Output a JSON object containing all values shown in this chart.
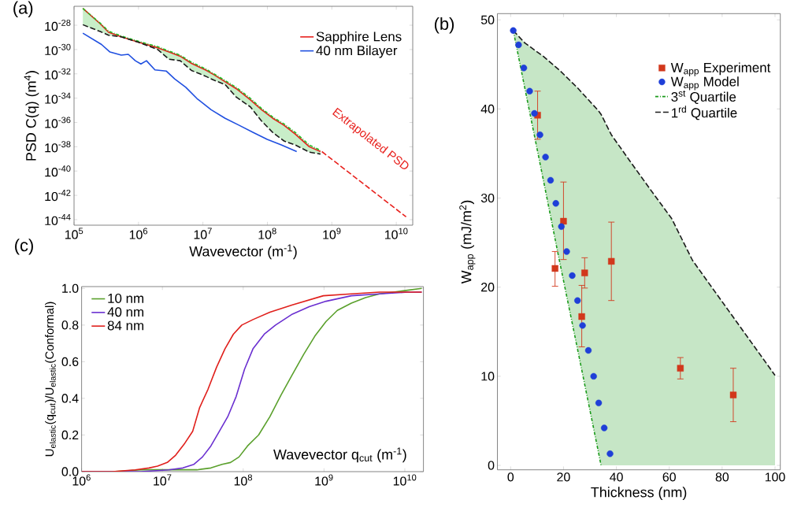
{
  "chart_data": [
    {
      "type": "line",
      "title": "(a)",
      "xlabel": "Wavevector (m$^{-1}$)",
      "ylabel": "PSD C(q) (m$^{4}$)",
      "log": "xy",
      "legend": "top right",
      "xlim": [
        100000.0,
        18000000000.0
      ],
      "ylim": [
        3.5e-45,
        3.6e-27
      ],
      "xticks": [
        {
          "value": 100000.0,
          "label": "10$^{5}$"
        },
        {
          "value": 1000000.0,
          "label": "10$^{6}$"
        },
        {
          "value": 10000000.0,
          "label": "10$^{7}$"
        },
        {
          "value": 100000000.0,
          "label": "10$^{8}$"
        },
        {
          "value": 1000000000.0,
          "label": "10$^{9}$"
        },
        {
          "value": 10000000000.0,
          "label": "10$^{10}$"
        }
      ],
      "yticks": [
        {
          "value": 1e-28,
          "label": "10$^{-28}$"
        },
        {
          "value": 1e-30,
          "label": "10$^{-30}$"
        },
        {
          "value": 1e-32,
          "label": "10$^{-32}$"
        },
        {
          "value": 1e-34,
          "label": "10$^{-34}$"
        },
        {
          "value": 1e-36,
          "label": "10$^{-36}$"
        },
        {
          "value": 1e-38,
          "label": "10$^{-38}$"
        },
        {
          "value": 1e-40,
          "label": "10$^{-40}$"
        },
        {
          "value": 1e-42,
          "label": "10$^{-42}$"
        },
        {
          "value": 1e-44,
          "label": "10$^{-44}$"
        }
      ],
      "x": [
        137000.0,
        255000.0,
        344000.0,
        541000.0,
        990000.0,
        1990000.0,
        2970000.0,
        4440000.0,
        6640000.0,
        10900000.0,
        14800000.0,
        22100000.0,
        33000000.0,
        54500000.0,
        81300000.0,
        121000000.0,
        181000000.0,
        271000000.0,
        447000000.0,
        667000000.0
      ],
      "series": [
        {
          "name": "Sapphire Lens",
          "color": "#e8211d",
          "values": [
            2.4e-27,
            1.3e-28,
            2.6e-29,
            1.1e-29,
            4e-30,
            1.4e-30,
            6.2e-31,
            2.8e-31,
            7.2e-32,
            2.1e-32,
            8.5e-33,
            2.2e-33,
            5.9e-34,
            7.1e-35,
            1.1e-35,
            2.2e-36,
            5.8e-37,
            1.1e-37,
            1e-38,
            4e-39
          ]
        },
        {
          "name": "40 nm Bilayer",
          "color": "#1f4fe0",
          "x": [
            137000.0,
            267000.0,
            361000.0,
            541000.0,
            695000.0,
            893000.0,
            1090000.0,
            1330000.0,
            1800000.0,
            2690000.0,
            3630000.0,
            5420000.0,
            8110000.0,
            13400000.0,
            22100000.0,
            36500000.0,
            60300000.0,
            99300000.0,
            164000000.0,
            285000000.0
          ],
          "values": [
            2.2e-29,
            2.6e-30,
            6.2e-31,
            3.5e-31,
            4e-31,
            1.2e-31,
            6.5e-32,
            1.2e-31,
            2.1e-32,
            1.7e-32,
            3.9e-33,
            7.8e-34,
            9.1e-35,
            1.1e-35,
            2.2e-36,
            5.8e-37,
            1.5e-37,
            4e-38,
            1.4e-38,
            4e-39
          ]
        },
        {
          "color": "#22bb22",
          "line_style": "dotted",
          "values": [
            2.4e-27,
            1.5e-28,
            3.2e-29,
            1.3e-29,
            4.8e-30,
            1.7e-30,
            7.5e-31,
            3.4e-31,
            9e-32,
            2.6e-32,
            1e-32,
            2.8e-33,
            7.5e-34,
            9.5e-35,
            1.4e-35,
            2.8e-36,
            7.5e-37,
            1.5e-37,
            1.4e-38,
            5e-39
          ],
          "lower": [
            1.1e-28,
            3e-29,
            1.5e-29,
            1.1e-29,
            4e-30,
            1e-30,
            1.6e-31,
            1.2e-31,
            1.9e-32,
            6.5e-33,
            3e-33,
            1.3e-33,
            1.2e-34,
            1.9e-35,
            1.3e-36,
            1.5e-37,
            3e-38,
            1.4e-38,
            3.6e-39,
            2.5e-39
          ],
          "upper": [
            2.4e-27,
            1.5e-28,
            3.2e-29,
            1.3e-29,
            4.8e-30,
            1.7e-30,
            7.5e-31,
            3.4e-31,
            9e-32,
            2.6e-32,
            1e-32,
            2.8e-33,
            7.5e-34,
            9.5e-35,
            1.4e-35,
            2.8e-36,
            7.5e-37,
            1.5e-37,
            1.4e-38,
            5e-39
          ]
        },
        {
          "color": "#1a1a1a",
          "line_style": "dashed",
          "values": [
            1.1e-28,
            3e-29,
            1.5e-29,
            1.1e-29,
            4e-30,
            1e-30,
            1.6e-31,
            1.2e-31,
            1.9e-32,
            6.5e-33,
            3e-33,
            1.3e-33,
            1.2e-34,
            1.9e-35,
            1.3e-36,
            1.5e-37,
            3e-38,
            1.4e-38,
            3.6e-39,
            2.5e-39
          ]
        },
        {
          "color": "#e8211d",
          "line_style": "dashed",
          "x": [
            700000000.0,
            14200000000.0
          ],
          "values": [
            4e-39,
            1.7e-44
          ]
        }
      ],
      "annotations": [
        "Extrapolated PSD"
      ]
    },
    {
      "type": "scatter",
      "title": "(b)",
      "xlabel": "Thickness (nm)",
      "ylabel": "W$_{app}$ (mJ/m$^{2}$)",
      "legend": "top right",
      "xlim": [
        -5,
        102
      ],
      "ylim": [
        -0.5,
        50.7
      ],
      "xticks": [
        0,
        20,
        40,
        60,
        80,
        100
      ],
      "yticks": [
        0,
        10,
        20,
        30,
        40,
        50
      ],
      "x": [
        1,
        5.4,
        12.4,
        18.3,
        25.2,
        33.2,
        34.2,
        38.1,
        45.0,
        53.0,
        60.9,
        68.8,
        100
      ],
      "series": [
        {
          "name": "W$_{app}$ Experiment",
          "color": "#d2381c",
          "marker": "square",
          "x": [
            10.2,
            20.0,
            16.8,
            28.0,
            26.9,
            38.1,
            64.2,
            84.2
          ],
          "values": [
            39.3,
            27.4,
            22.1,
            21.6,
            16.7,
            22.9,
            10.9,
            7.9
          ],
          "errors": [
            [
              36.6,
              42.0
            ],
            [
              23.1,
              31.8
            ],
            [
              20.1,
              24.0
            ],
            [
              19.9,
              23.3
            ],
            [
              13.3,
              20.2
            ],
            [
              18.5,
              27.3
            ],
            [
              9.7,
              12.1
            ],
            [
              4.9,
              10.9
            ]
          ]
        },
        {
          "name": "W$_{app}$ Model",
          "color": "#1f3fd8",
          "marker": "circle",
          "x": [
            1.0,
            3.0,
            5.0,
            7.2,
            9.0,
            11.1,
            13.2,
            15.1,
            17.1,
            19.2,
            21.2,
            23.3,
            25.3,
            27.2,
            29.4,
            31.4,
            33.3,
            35.4,
            37.6
          ],
          "values": [
            48.8,
            47.2,
            44.6,
            42.0,
            39.5,
            37.1,
            34.6,
            32.0,
            29.4,
            26.8,
            24.0,
            21.3,
            18.5,
            15.7,
            12.9,
            10.0,
            7.0,
            4.2,
            1.3
          ]
        },
        {
          "name": "3$^{st}$ Quartile",
          "type": "line",
          "color": "#1a9a1a",
          "line_style": "dotted",
          "values": [
            48.8,
            42.3,
            32.0,
            23.2,
            13.2,
            1.5,
            0,
            null,
            null,
            null,
            null,
            null,
            null
          ],
          "lower": [
            48.8,
            42.3,
            32.0,
            23.2,
            13.2,
            1.5,
            0,
            0,
            0,
            0,
            0,
            0,
            0
          ],
          "upper": [
            48.8,
            47.4,
            45.9,
            44.4,
            42.4,
            39.8,
            39.4,
            37.1,
            34.2,
            30.9,
            27.7,
            23.0,
            10.1
          ]
        },
        {
          "name": "1$^{rd}$ Quartile",
          "type": "line",
          "color": "#1a1a1a",
          "line_style": "dashed",
          "values": [
            48.8,
            47.4,
            45.9,
            44.4,
            42.4,
            39.8,
            39.4,
            37.1,
            34.2,
            30.9,
            27.7,
            23.0,
            10.1
          ]
        }
      ]
    },
    {
      "type": "line",
      "title": "(c)",
      "xlabel": "Wavevector q$_{cut}$ (m$^{-1}$)",
      "ylabel": "U$_{elastic}$(q$_{cut}$)/U$_{elastic}$(Conformal)",
      "log": "x",
      "legend": "top left",
      "xlim": [
        1000000.0,
        17000000000.0
      ],
      "ylim": [
        0,
        1.01
      ],
      "xticks": [
        {
          "value": 1000000.0,
          "label": "10$^{6}$"
        },
        {
          "value": 10000000.0,
          "label": "10$^{7}$"
        },
        {
          "value": 100000000.0,
          "label": "10$^{8}$"
        },
        {
          "value": 1000000000.0,
          "label": "10$^{9}$"
        },
        {
          "value": 10000000000.0,
          "label": "10$^{10}$"
        }
      ],
      "yticks": [
        {
          "value": 0,
          "label": "0.0"
        },
        0.2,
        0.4,
        0.6,
        0.8,
        {
          "value": 1,
          "label": "1.0"
        }
      ],
      "series": [
        {
          "name": "10 nm",
          "color": "#5aa02c",
          "x": [
            1000000.0,
            2400000.0,
            5400000.0,
            12000000.0,
            26700000.0,
            39800000.0,
            54800000.0,
            69700000.0,
            88700000.0,
            113000000.0,
            155000000.0,
            214000000.0,
            295000000.0,
            406000000.0,
            560000000.0,
            771000000.0,
            1060000000.0,
            1460000000.0,
            2180000000.0,
            3260000000.0,
            4860000000.0,
            7260000000.0,
            10800000000.0,
            16200000000.0
          ],
          "values": [
            0,
            0.0,
            0.01,
            0.01,
            0.01,
            0.02,
            0.04,
            0.05,
            0.08,
            0.14,
            0.2,
            0.3,
            0.42,
            0.53,
            0.64,
            0.74,
            0.82,
            0.88,
            0.92,
            0.95,
            0.97,
            0.98,
            0.99,
            1.0
          ]
        },
        {
          "name": "40 nm",
          "color": "#6a2fd0",
          "x": [
            1000000.0,
            5400000.0,
            12000000.0,
            17900000.0,
            24600000.0,
            31300000.0,
            39800000.0,
            50600000.0,
            64400000.0,
            81800000.0,
            104000000.0,
            132000000.0,
            182000000.0,
            251000000.0,
            406000000.0,
            656000000.0,
            1060000000.0,
            2180000000.0,
            4860000000.0,
            10800000000.0,
            16200000000.0
          ],
          "values": [
            0,
            0.0,
            0.01,
            0.02,
            0.04,
            0.08,
            0.14,
            0.22,
            0.3,
            0.41,
            0.56,
            0.67,
            0.75,
            0.8,
            0.86,
            0.9,
            0.93,
            0.96,
            0.97,
            0.98,
            0.98
          ]
        },
        {
          "name": "84 nm",
          "color": "#e0201c",
          "x": [
            1000000.0,
            2400000.0,
            4600000.0,
            6800000.0,
            8700000.0,
            11500000.0,
            14600000.0,
            18600000.0,
            23700000.0,
            28900000.0,
            36700000.0,
            46800000.0,
            59400000.0,
            75500000.0,
            96000000.0,
            132000000.0,
            214000000.0,
            406000000.0,
            980000000.0,
            2180000000.0,
            4860000000.0,
            16200000000.0
          ],
          "values": [
            0,
            0.0,
            0.01,
            0.02,
            0.03,
            0.05,
            0.09,
            0.15,
            0.22,
            0.35,
            0.45,
            0.57,
            0.67,
            0.75,
            0.8,
            0.83,
            0.87,
            0.91,
            0.96,
            0.97,
            0.98,
            0.98
          ]
        }
      ]
    }
  ]
}
